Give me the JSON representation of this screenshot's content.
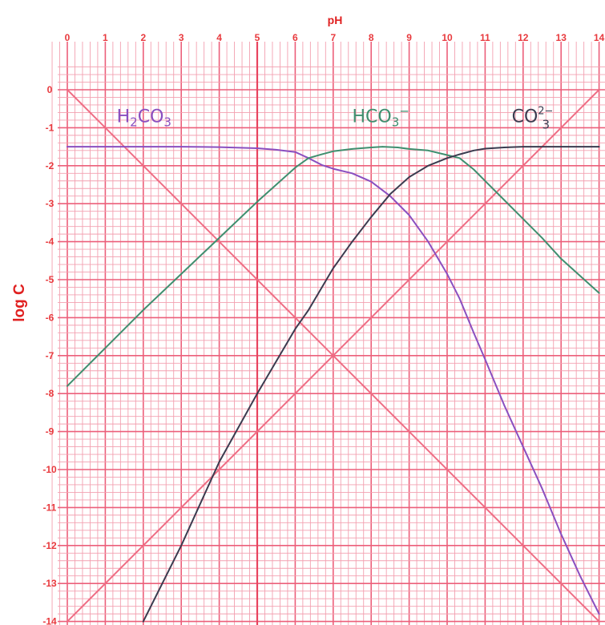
{
  "chart_data": {
    "type": "line",
    "title": "",
    "xlabel": "pH",
    "ylabel": "log C",
    "xlim": [
      0,
      14
    ],
    "ylim": [
      -14,
      0.5
    ],
    "x_ticks": [
      "0",
      "1",
      "2",
      "3",
      "4",
      "5",
      "6",
      "7",
      "8",
      "9",
      "10",
      "11",
      "12",
      "13",
      "14"
    ],
    "y_ticks": [
      "0",
      "-1",
      "-2",
      "-3",
      "-4",
      "-5",
      "-6",
      "-7",
      "-8",
      "-9",
      "-10",
      "-11",
      "-12",
      "-13",
      "-14"
    ],
    "grid": true,
    "colors": {
      "grid": "#f3a0b0",
      "grid_major": "#ec5f7a",
      "axis_text": "#e8393d",
      "axis_title": "#e02020",
      "h2co3": "#8a4fc0",
      "hco3": "#3f8f6f",
      "co3": "#3b3b4f",
      "h_line": "#ef6d84",
      "oh_line": "#ef6d84"
    },
    "series": [
      {
        "name": "H2CO3",
        "x": [
          0,
          1,
          2,
          3,
          4,
          5,
          5.5,
          6,
          6.35,
          6.7,
          7,
          7.5,
          8,
          8.5,
          9,
          9.5,
          10,
          10.33,
          10.7,
          11,
          11.5,
          12,
          12.5,
          13,
          13.5,
          14
        ],
        "values": [
          -1.5,
          -1.5,
          -1.5,
          -1.5,
          -1.51,
          -1.54,
          -1.58,
          -1.64,
          -1.8,
          -1.98,
          -2.08,
          -2.2,
          -2.42,
          -2.8,
          -3.3,
          -4.0,
          -4.85,
          -5.5,
          -6.4,
          -7.1,
          -8.3,
          -9.4,
          -10.5,
          -11.7,
          -12.8,
          -13.8
        ]
      },
      {
        "name": "HCO3-",
        "x": [
          0,
          1,
          2,
          3,
          4,
          5,
          5.5,
          6,
          6.35,
          6.7,
          7,
          7.5,
          8,
          8.3,
          8.7,
          9,
          9.5,
          10,
          10.33,
          10.7,
          11,
          11.5,
          12,
          12.5,
          13,
          13.5,
          14
        ],
        "values": [
          -7.8,
          -6.8,
          -5.8,
          -4.85,
          -3.9,
          -2.95,
          -2.5,
          -2.05,
          -1.8,
          -1.7,
          -1.62,
          -1.56,
          -1.52,
          -1.5,
          -1.52,
          -1.56,
          -1.6,
          -1.72,
          -1.8,
          -2.1,
          -2.4,
          -2.9,
          -3.4,
          -3.9,
          -4.45,
          -4.9,
          -5.35
        ]
      },
      {
        "name": "CO3^2-",
        "x": [
          2,
          3,
          4,
          5,
          6,
          6.35,
          7,
          7.5,
          8,
          8.5,
          9,
          9.5,
          10,
          10.33,
          10.7,
          11,
          11.5,
          12,
          13,
          14
        ],
        "values": [
          -14.0,
          -12.0,
          -9.8,
          -8.0,
          -6.3,
          -5.8,
          -4.7,
          -4.0,
          -3.35,
          -2.75,
          -2.3,
          -2.0,
          -1.8,
          -1.7,
          -1.6,
          -1.55,
          -1.52,
          -1.5,
          -1.5,
          -1.5
        ]
      }
    ],
    "reference_lines": [
      {
        "id": "log-h",
        "x": [
          0,
          14
        ],
        "values": [
          0,
          -14
        ]
      },
      {
        "id": "log-oh",
        "x": [
          0,
          14
        ],
        "values": [
          -14,
          0
        ]
      }
    ],
    "annotations": {
      "h2co3": {
        "base": "H",
        "sub1": "2",
        "mid": "CO",
        "sub2": "3",
        "x": 1.3,
        "y": -0.85
      },
      "hco3": {
        "base": "HCO",
        "sub": "3",
        "sup": "−",
        "x": 7.5,
        "y": -0.85
      },
      "co3": {
        "base": "CO",
        "sub": "3",
        "sup": "2−",
        "x": 11.7,
        "y": -0.85
      }
    }
  }
}
